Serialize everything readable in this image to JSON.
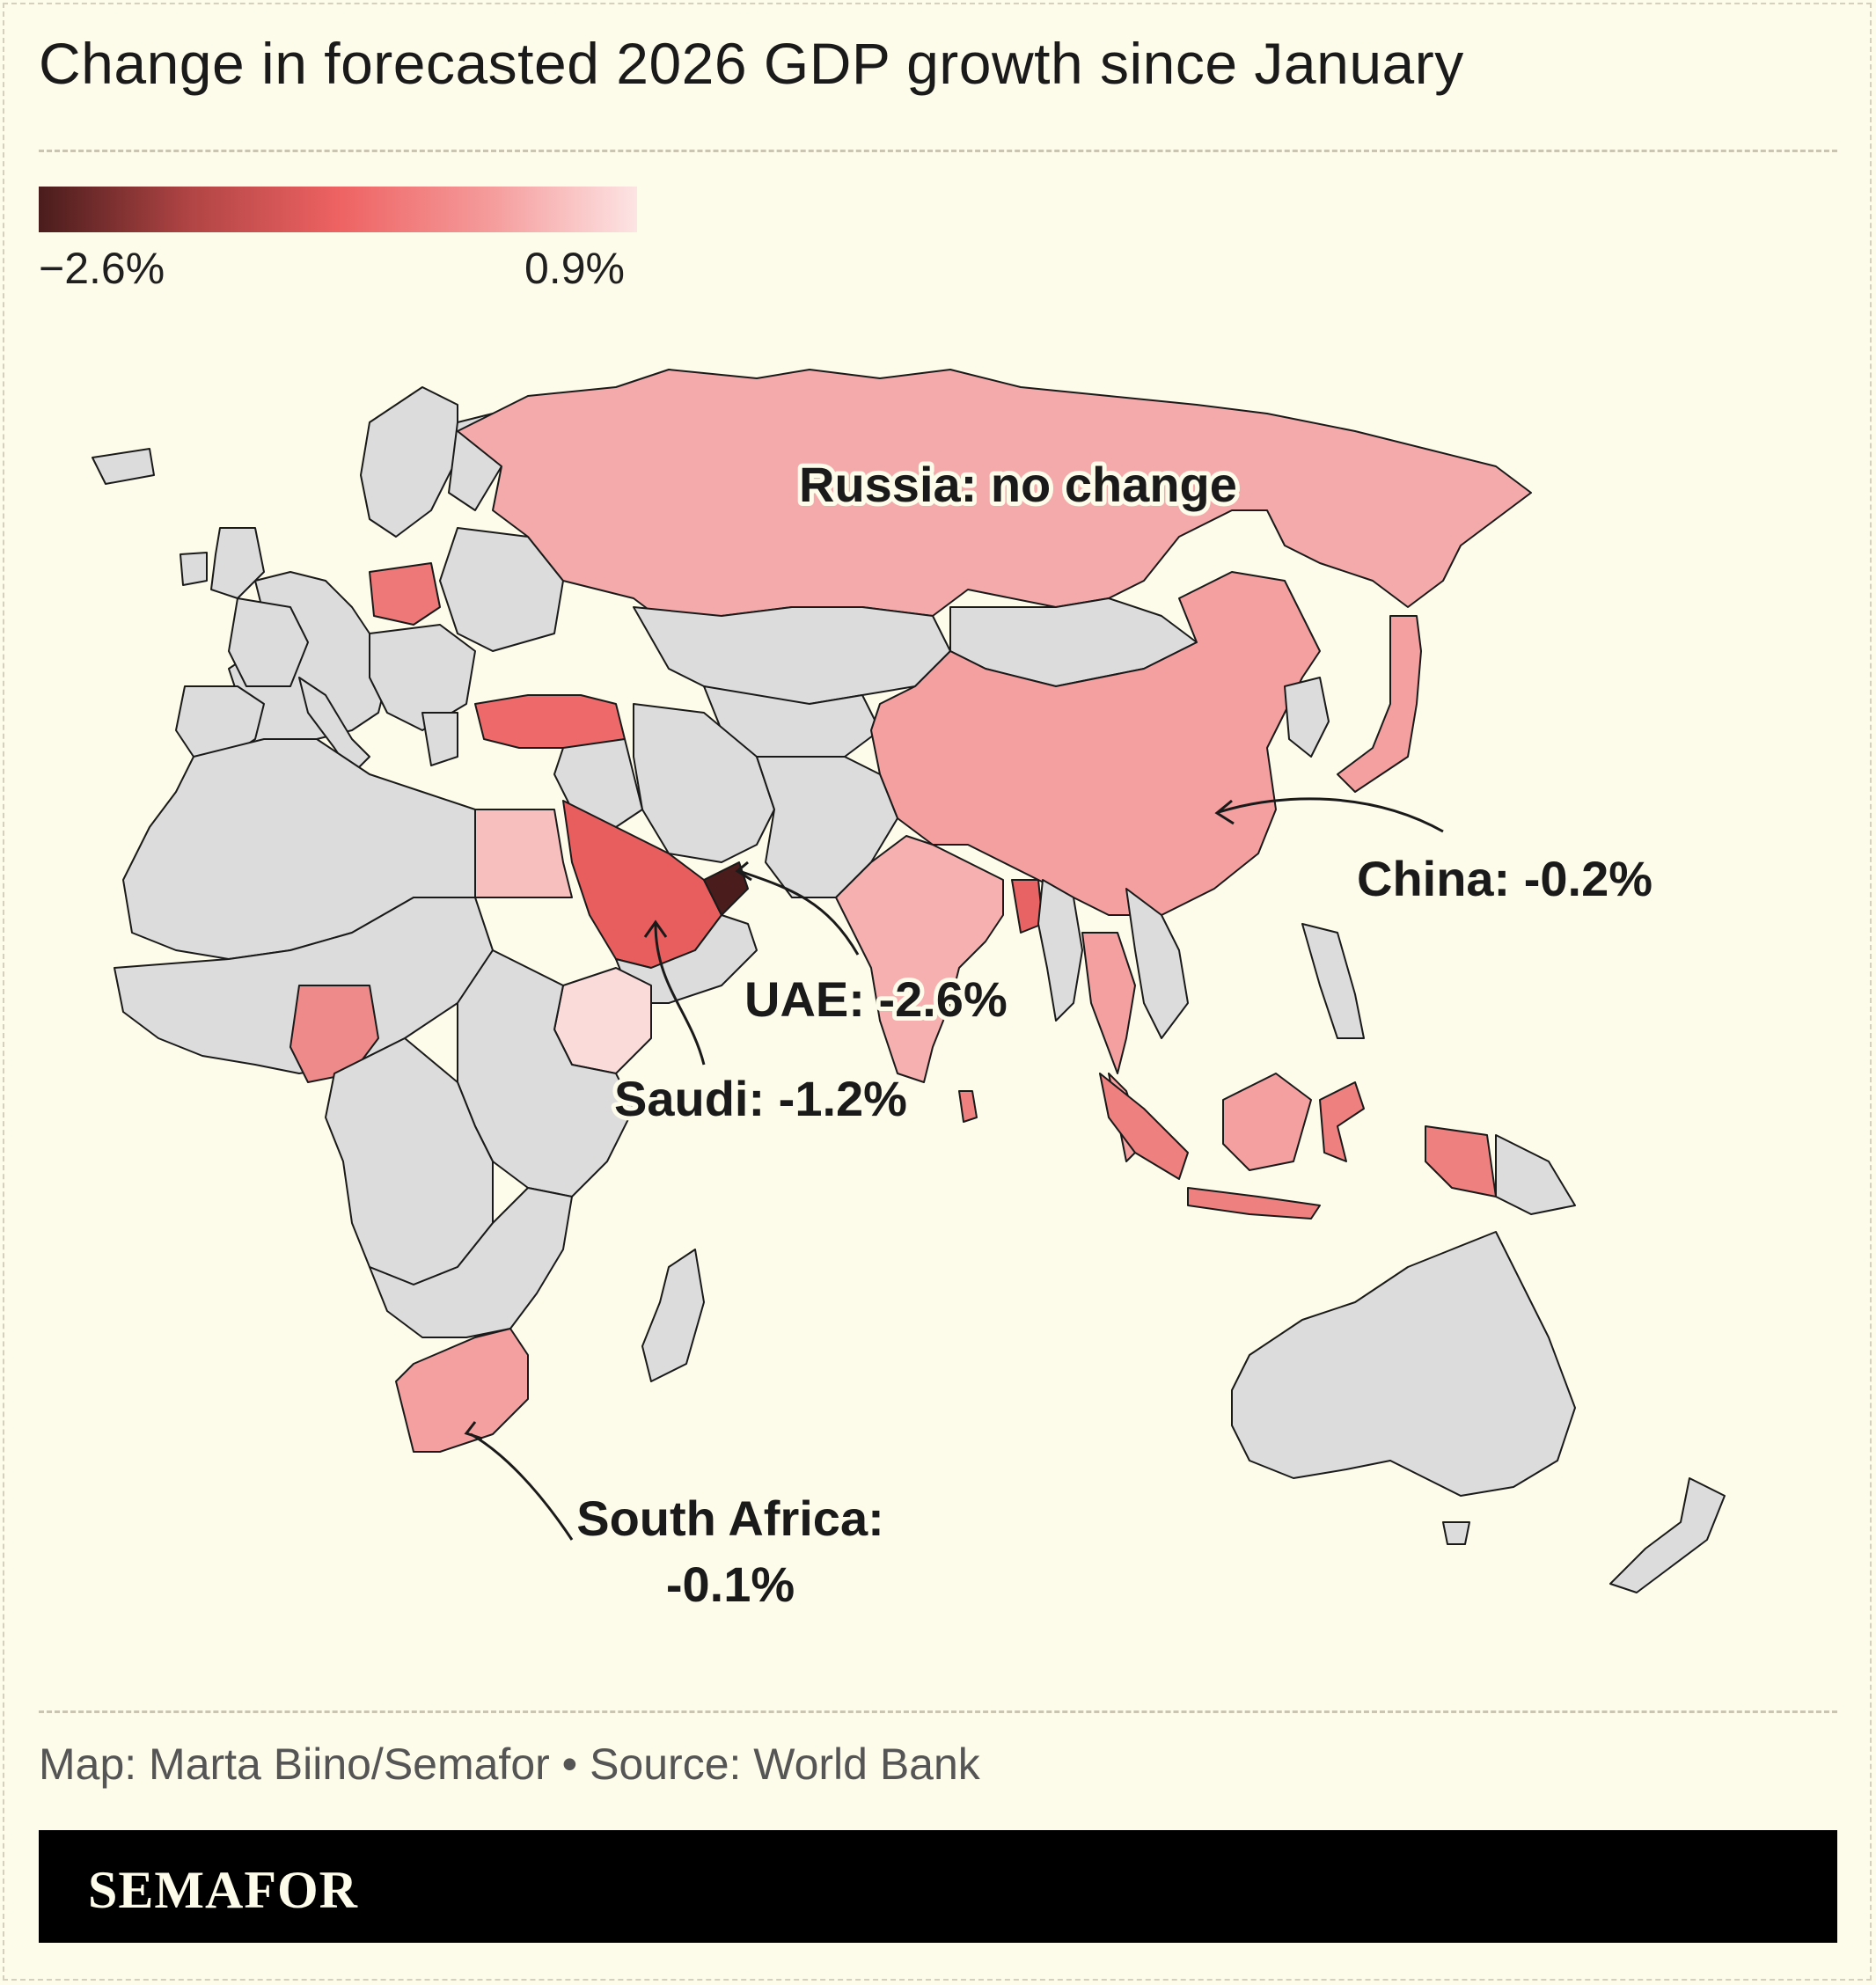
{
  "title": "Change in forecasted 2026 GDP growth since January",
  "legend": {
    "min_label": "−2.6%",
    "max_label": "0.9%",
    "colors": [
      "#4a1c1c",
      "#b04444",
      "#ee6262",
      "#f59a9a",
      "#fde4e4"
    ]
  },
  "colors": {
    "no_data": "#dcdcdc",
    "background": "#fdfbe9",
    "ocean": "#fdfbe9"
  },
  "map": {
    "region": "Europe, Africa, Asia and Oceania",
    "annotations": [
      {
        "id": "russia",
        "text": "Russia: no change",
        "value": 0.0
      },
      {
        "id": "china",
        "text": "China: -0.2%",
        "value": -0.2
      },
      {
        "id": "uae",
        "text": "UAE: -2.6%",
        "value": -2.6
      },
      {
        "id": "saudi",
        "text": "Saudi: -1.2%",
        "value": -1.2
      },
      {
        "id": "south_africa_line1",
        "text": "South Africa:",
        "value": -0.1
      },
      {
        "id": "south_africa_line2",
        "text": "-0.1%"
      }
    ]
  },
  "credit": "Map: Marta Biino/Semafor • Source: World Bank",
  "brand": "SEMAFOR"
}
